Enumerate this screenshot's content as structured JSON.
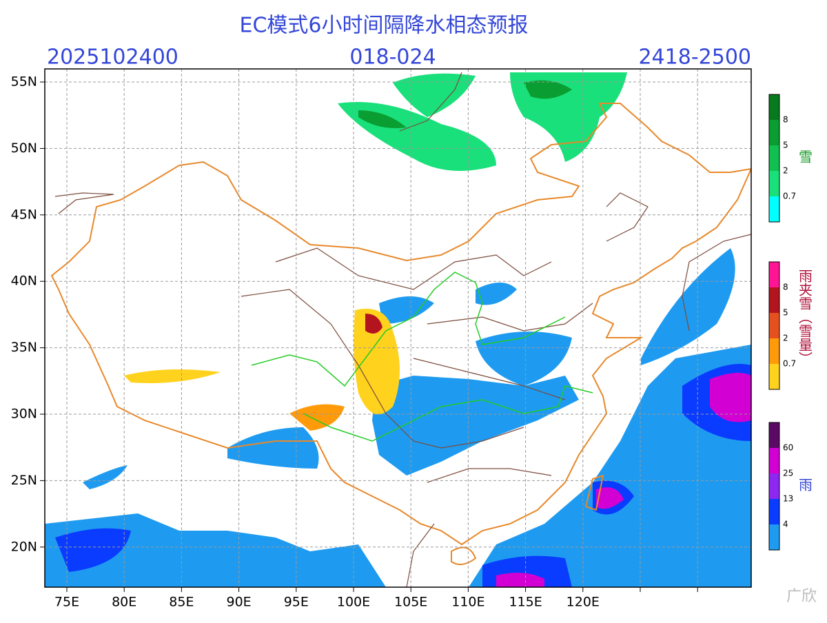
{
  "header": {
    "title": "EC模式6小时间隔降水相态预报",
    "init_time": "2025102400",
    "forecast_hours": "018-024",
    "valid_time": "2418-2500"
  },
  "axes": {
    "lat_labels": [
      "55N",
      "50N",
      "45N",
      "40N",
      "35N",
      "30N",
      "25N",
      "20N"
    ],
    "lon_labels": [
      "75E",
      "80E",
      "85E",
      "90E",
      "95E",
      "100E",
      "105E",
      "110E",
      "115E",
      "120E"
    ]
  },
  "legends": [
    {
      "title": "雪",
      "labels": [
        0.7,
        2,
        5,
        8
      ],
      "colors": [
        "#00ffff",
        "#19e07a",
        "#10c050",
        "#0a9e32",
        "#087a1e"
      ]
    },
    {
      "title": "雨夹雪（雪量）",
      "labels": [
        0.7,
        2,
        5,
        8
      ],
      "colors": [
        "#ffd21e",
        "#ff9a0a",
        "#e5501e",
        "#b4141e",
        "#ff1493"
      ]
    },
    {
      "title": "雨",
      "labels": [
        4,
        13,
        25,
        60
      ],
      "colors": [
        "#1e9bf0",
        "#0a3cff",
        "#8c28f0",
        "#d200d2",
        "#5a0a64"
      ]
    }
  ],
  "watermark": "广欣"
}
